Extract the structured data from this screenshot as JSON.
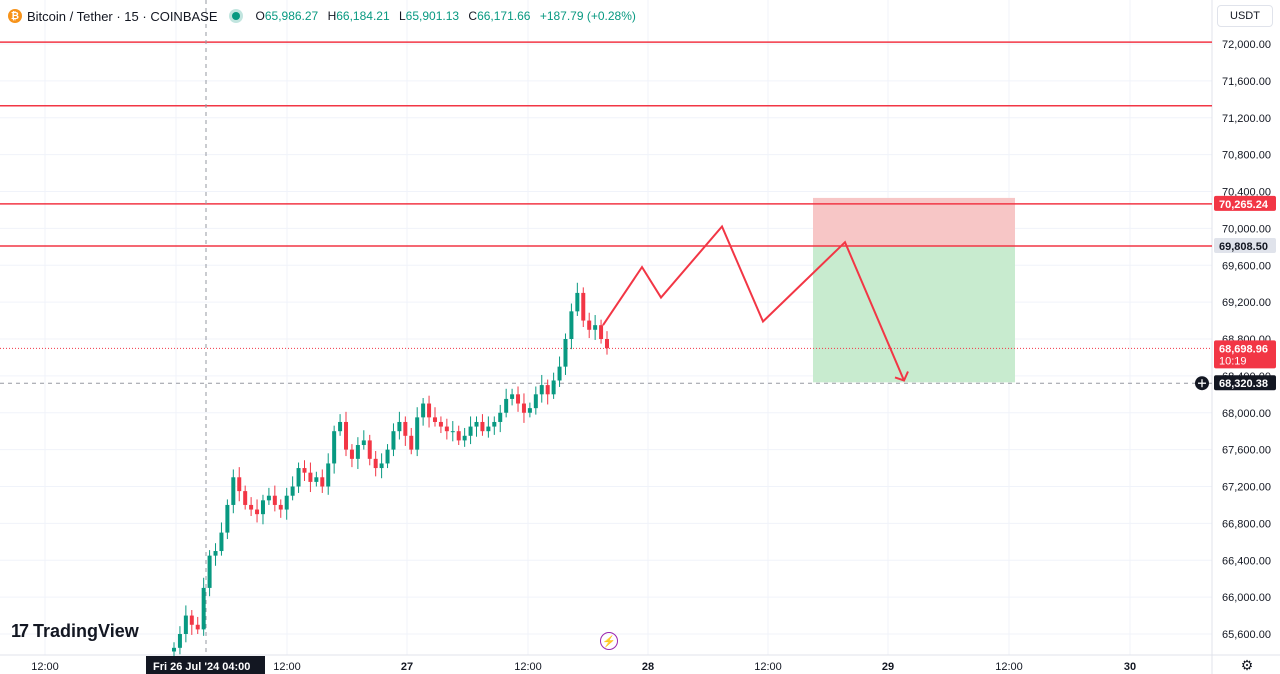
{
  "legend": {
    "logo": "₿",
    "symbol": "Bitcoin / Tether · 15 · COINBASE",
    "o_label": "O",
    "o": "65,986.27",
    "h_label": "H",
    "h": "66,184.21",
    "l_label": "L",
    "l": "65,901.13",
    "c_label": "C",
    "c": "66,171.66",
    "change": "+187.79 (+0.28%)"
  },
  "currency": "USDT",
  "brand": {
    "mark": "17",
    "name": "TradingView"
  },
  "icons": {
    "gear": "gear-icon",
    "flash": "lightning-icon",
    "plus": "plus-circle-icon"
  },
  "colors": {
    "up": "#089981",
    "down": "#f23645",
    "line": "#f23645",
    "stop": "#f7c6c6",
    "target": "#c8ebcf",
    "grid": "#f0f3fa"
  },
  "chart_data": {
    "type": "candlestick",
    "ylim": [
      65400,
      72150
    ],
    "y_ticks": [
      65600,
      66000,
      66400,
      66800,
      67200,
      67600,
      68000,
      68400,
      68800,
      69200,
      69600,
      70000,
      70400,
      70800,
      71200,
      71600,
      72000
    ],
    "y_tick_labels": [
      "65,600.00",
      "66,000.00",
      "66,400.00",
      "66,800.00",
      "67,200.00",
      "67,600.00",
      "68,000.00",
      "68,400.00",
      "68,800.00",
      "69,200.00",
      "69,600.00",
      "70,000.00",
      "70,400.00",
      "70,800.00",
      "71,200.00",
      "71,600.00",
      "72,000.00"
    ],
    "x_ticks": [
      "12:00",
      "Fri 26 Jul '24  04:00",
      "12:00",
      "27",
      "12:00",
      "28",
      "12:00",
      "29",
      "12:00",
      "30"
    ],
    "x_tick_bold": [
      false,
      false,
      false,
      true,
      false,
      true,
      false,
      true,
      false,
      true
    ],
    "horizontal_levels": [
      72020,
      71330,
      70265.24,
      69808.5
    ],
    "price_labels": [
      {
        "value": 70265.24,
        "text": "70,265.24",
        "kind": "red"
      },
      {
        "value": 69808.5,
        "text": "69,808.50",
        "kind": "grey"
      },
      {
        "value": 68698.96,
        "text": "68,698.96",
        "sub": "10:19",
        "kind": "red"
      },
      {
        "value": 68320.38,
        "text": "68,320.38",
        "kind": "dark"
      }
    ],
    "current_price": 68698.96,
    "crosshair_price": 68320.38,
    "candles_approx": [
      65450,
      65600,
      65800,
      65700,
      65650,
      66100,
      66450,
      66500,
      66700,
      67000,
      67300,
      67150,
      67000,
      66950,
      66900,
      67050,
      67100,
      67000,
      66950,
      67100,
      67200,
      67400,
      67350,
      67250,
      67300,
      67200,
      67450,
      67800,
      67900,
      67600,
      67500,
      67650,
      67700,
      67500,
      67400,
      67450,
      67600,
      67800,
      67900,
      67750,
      67600,
      67950,
      68100,
      67950,
      67900,
      67850,
      67800,
      67800,
      67700,
      67750,
      67850,
      67900,
      67800,
      67850,
      67900,
      68000,
      68150,
      68200,
      68100,
      68000,
      68050,
      68200,
      68300,
      68200,
      68350,
      68500,
      68800,
      69100,
      69300,
      69000,
      68900,
      68950,
      68800,
      68700
    ]
  },
  "annotations": {
    "risk_reward": {
      "entry": 69808.5,
      "stop": 70265.24,
      "target": 68330,
      "x_start_label": "28 12:00",
      "x_end_label": "29 12:00"
    },
    "zigzag_path": [
      68950,
      69580,
      69250,
      70020,
      68990,
      69850,
      68350
    ]
  }
}
